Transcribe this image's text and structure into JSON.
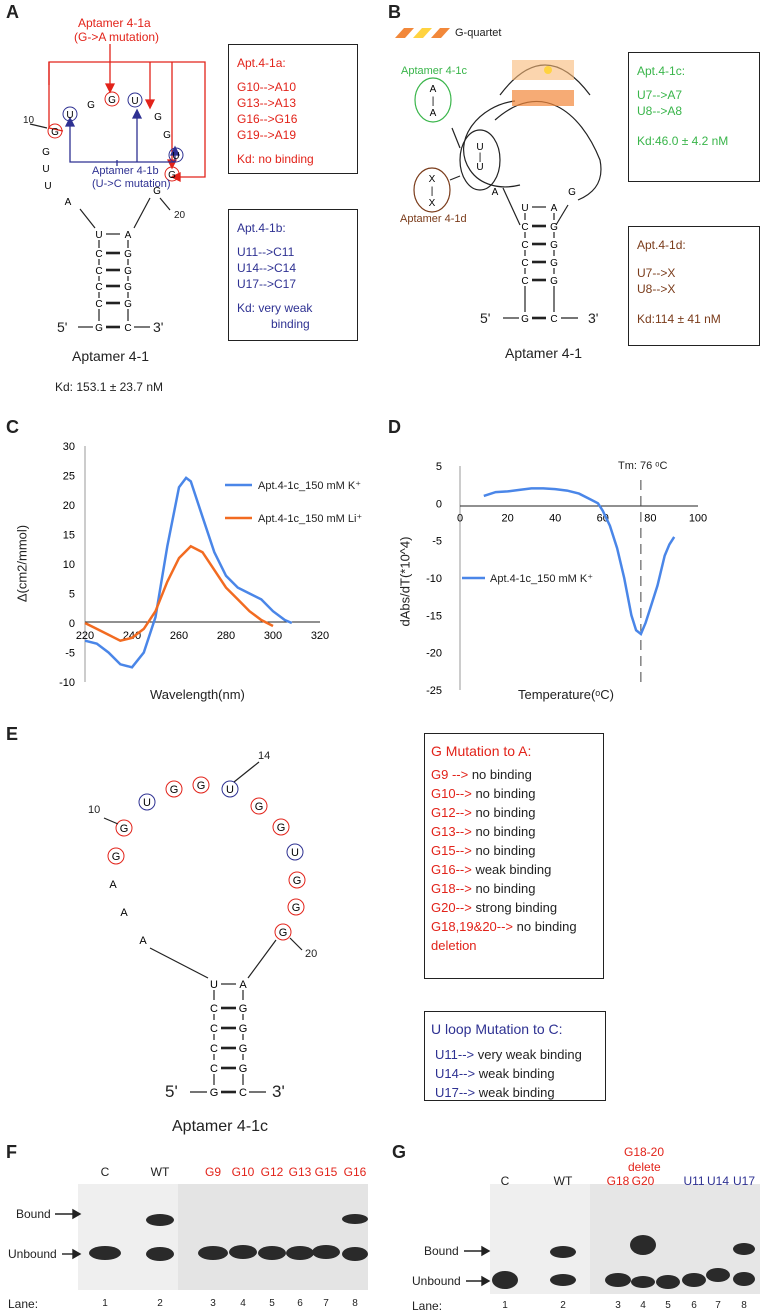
{
  "panels": {
    "A": {
      "label": "A",
      "mut_a_title": "Aptamer 4-1a",
      "mut_a_sub": "(G->A mutation)",
      "mut_b_title": "Aptamer 4-1b",
      "mut_b_sub": "(U->C mutation)",
      "name": "Aptamer 4-1",
      "kd": "Kd: 153.1 ± 23.7 nM",
      "num10": "10",
      "num20": "20",
      "end5": "5'",
      "end3": "3'",
      "box1": {
        "title": "Apt.4-1a:",
        "lines": [
          "G10-->A10",
          "G13-->A13",
          "G16-->G16",
          "G19-->A19"
        ],
        "kd": "Kd: no binding"
      },
      "box2": {
        "title": "Apt.4-1b:",
        "lines": [
          "U11-->C11",
          "U14-->C14",
          "U17-->C17"
        ],
        "kd1": "Kd: very weak",
        "kd2": "binding"
      }
    },
    "B": {
      "label": "B",
      "legend": "G-quartet",
      "c_name": "Aptamer 4-1c",
      "d_name": "Aptamer 4-1d",
      "name": "Aptamer 4-1",
      "end5": "5'",
      "end3": "3'",
      "box1": {
        "title": "Apt.4-1c:",
        "lines": [
          "U7-->A7",
          "U8-->A8"
        ],
        "kd": "Kd:46.0 ± 4.2 nM"
      },
      "box2": {
        "title": "Apt.4-1d:",
        "lines": [
          "U7-->X",
          "U8-->X"
        ],
        "kd": "Kd:114 ±  41 nM"
      }
    },
    "C": {
      "label": "C"
    },
    "D": {
      "label": "D"
    },
    "E": {
      "label": "E",
      "name": "Aptamer 4-1c",
      "num10": "10",
      "num14": "14",
      "num20": "20",
      "end5": "5'",
      "end3": "3'",
      "box1": {
        "title": "G Mutation to A:",
        "rows": [
          {
            "k": "G9  -->",
            "v": " no binding"
          },
          {
            "k": "G10-->",
            "v": " no binding"
          },
          {
            "k": "G12-->",
            "v": " no binding"
          },
          {
            "k": "G13-->",
            "v": " no binding"
          },
          {
            "k": "G15-->",
            "v": " no binding"
          },
          {
            "k": "G16-->",
            "v": " weak binding"
          },
          {
            "k": "G18-->",
            "v": " no binding"
          },
          {
            "k": "G20-->",
            "v": " strong binding"
          },
          {
            "k": "G18,19&20-->",
            "v": " no binding"
          }
        ],
        "deletion": " deletion"
      },
      "box2": {
        "title": "U loop Mutation to C:",
        "rows": [
          {
            "k": "U11-->",
            "v": " very weak binding"
          },
          {
            "k": "U14-->",
            "v": " weak binding"
          },
          {
            "k": "U17-->",
            "v": " weak binding"
          }
        ]
      }
    },
    "F": {
      "label": "F",
      "lanes_top": [
        "C",
        "WT",
        "G9",
        "G10",
        "G12",
        "G13",
        "G15",
        "G16"
      ],
      "bound": "Bound",
      "unbound": "Unbound",
      "lane_label": "Lane:",
      "lane_nums": [
        "1",
        "2",
        "3",
        "4",
        "5",
        "6",
        "7",
        "8"
      ]
    },
    "G": {
      "label": "G",
      "lanes_top": [
        "C",
        "WT",
        "G18",
        "G20",
        "U11",
        "U14",
        "U17"
      ],
      "del1": "G18-20",
      "del2": "delete",
      "bound": "Bound",
      "unbound": "Unbound",
      "lane_label": "Lane:",
      "lane_nums": [
        "1",
        "2",
        "3",
        "4",
        "5",
        "6",
        "7",
        "8"
      ]
    }
  },
  "colors": {
    "red": "#e2231a",
    "blue": "#2e3192",
    "green": "#39b54a",
    "brown": "#7a3b1a",
    "k": "#4a86e8",
    "li": "#f26b21"
  },
  "chart_data": [
    {
      "type": "line",
      "panel": "C",
      "xlabel": "Wavelength(nm)",
      "ylabel": "Δ(cm2/mmol)",
      "xlim": [
        220,
        320
      ],
      "ylim": [
        -10,
        30
      ],
      "xticks": [
        "220",
        "240",
        "260",
        "280",
        "300",
        "320"
      ],
      "yticks": [
        "-10",
        "-5",
        "0",
        "5",
        "10",
        "15",
        "20",
        "25",
        "30"
      ],
      "series": [
        {
          "name": "Apt.4-1c_150 mM K⁺",
          "x": [
            220,
            225,
            230,
            235,
            240,
            245,
            250,
            255,
            260,
            263,
            265,
            270,
            275,
            280,
            285,
            290,
            295,
            300,
            305,
            308
          ],
          "y": [
            -3,
            -3.5,
            -5,
            -7,
            -7.5,
            -5,
            1,
            13,
            23,
            24.6,
            24,
            18,
            12,
            8,
            6,
            5,
            4,
            2,
            0.5,
            0
          ]
        },
        {
          "name": "Apt.4-1c_150 mM Li⁺",
          "x": [
            220,
            225,
            230,
            235,
            240,
            245,
            250,
            255,
            260,
            265,
            270,
            275,
            280,
            285,
            290,
            295,
            300
          ],
          "y": [
            0,
            -1,
            -2,
            -3,
            -2.5,
            -1,
            2,
            7,
            11,
            13,
            12,
            9,
            6,
            4,
            2,
            0.5,
            -0.5
          ]
        }
      ]
    },
    {
      "type": "line",
      "panel": "D",
      "xlabel": "Temperature(ᵒC)",
      "ylabel": "dAbs/dT(*10^4)",
      "xlim": [
        0,
        100
      ],
      "ylim": [
        -25,
        5
      ],
      "xticks": [
        "0",
        "20",
        "40",
        "60",
        "80",
        "100"
      ],
      "yticks": [
        "5",
        "0",
        "-5",
        "-10",
        "-15",
        "-20",
        "-25"
      ],
      "annotation": "Tm: 76 ᵒC",
      "tm": 76,
      "series": [
        {
          "name": "Apt.4-1c_150 mM K⁺",
          "x": [
            10,
            15,
            20,
            25,
            30,
            35,
            40,
            45,
            50,
            55,
            58,
            60,
            63,
            66,
            69,
            72,
            74,
            76,
            78,
            80,
            83,
            86,
            88,
            90
          ],
          "y": [
            1,
            1.5,
            1.6,
            1.8,
            2,
            2,
            1.9,
            1.7,
            1.3,
            0.5,
            0,
            -1,
            -3,
            -6,
            -10,
            -15,
            -17,
            -17.5,
            -16,
            -14,
            -11,
            -7,
            -5.5,
            -4.5
          ]
        }
      ]
    }
  ]
}
